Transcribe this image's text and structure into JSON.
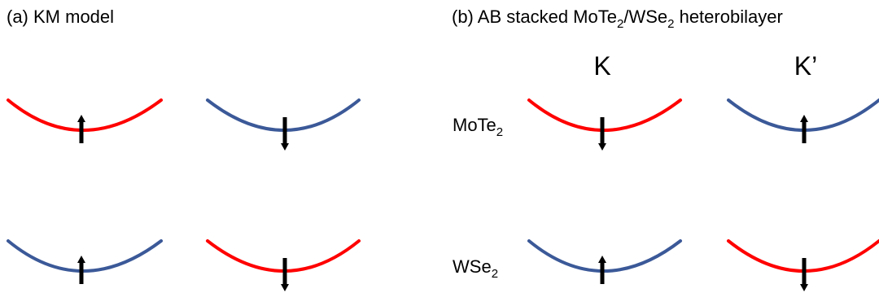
{
  "panel_a": {
    "title": "(a) KM model",
    "bands": [
      {
        "color_key": "red",
        "spin": "up"
      },
      {
        "color_key": "blue",
        "spin": "down"
      },
      {
        "color_key": "blue",
        "spin": "up"
      },
      {
        "color_key": "red",
        "spin": "down"
      }
    ]
  },
  "panel_b": {
    "title_prefix": "(b) AB stacked MoTe",
    "title_sub1": "2",
    "title_mid": "/WSe",
    "title_sub2": "2",
    "title_suffix": " heterobilayer",
    "valley_k": "K",
    "valley_kprime": "K’",
    "layer_top_base": "MoTe",
    "layer_top_sub": "2",
    "layer_bottom_base": "WSe",
    "layer_bottom_sub": "2",
    "bands": [
      {
        "color_key": "red",
        "spin": "down"
      },
      {
        "color_key": "blue",
        "spin": "up"
      },
      {
        "color_key": "blue",
        "spin": "up"
      },
      {
        "color_key": "red",
        "spin": "down"
      }
    ]
  },
  "colors": {
    "red": "#ff0000",
    "blue": "#3b5998",
    "arrow": "#000000"
  }
}
